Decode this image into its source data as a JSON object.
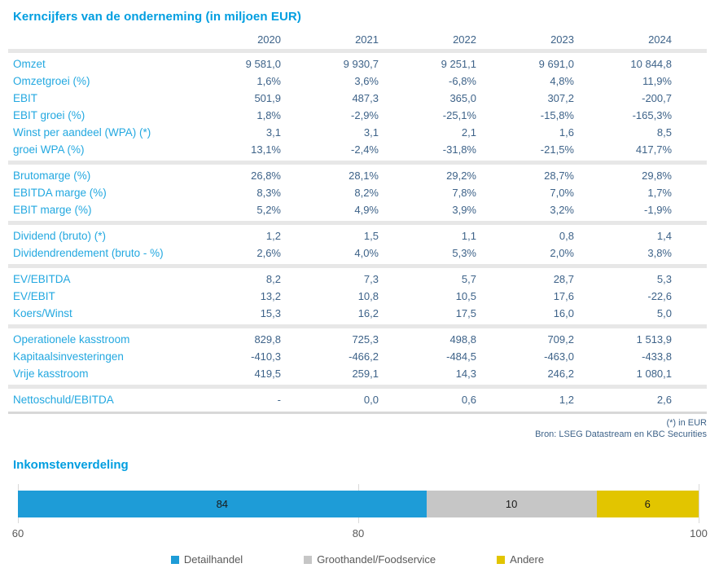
{
  "page": {
    "title": "Kerncijfers van de onderneming (in miljoen EUR)",
    "footnote": "(*) in EUR",
    "source": "Bron: LSEG Datastream en KBC Securities"
  },
  "table": {
    "year_headers": [
      "2020",
      "2021",
      "2022",
      "2023",
      "2024"
    ],
    "sections": [
      {
        "rows": [
          {
            "label": "Omzet",
            "values": [
              "9 581,0",
              "9 930,7",
              "9 251,1",
              "9 691,0",
              "10 844,8"
            ]
          },
          {
            "label": "Omzetgroei (%)",
            "values": [
              "1,6%",
              "3,6%",
              "-6,8%",
              "4,8%",
              "11,9%"
            ]
          },
          {
            "label": "EBIT",
            "values": [
              "501,9",
              "487,3",
              "365,0",
              "307,2",
              "-200,7"
            ]
          },
          {
            "label": "EBIT groei (%)",
            "values": [
              "1,8%",
              "-2,9%",
              "-25,1%",
              "-15,8%",
              "-165,3%"
            ]
          },
          {
            "label": "Winst per aandeel (WPA) (*)",
            "values": [
              "3,1",
              "3,1",
              "2,1",
              "1,6",
              "8,5"
            ]
          },
          {
            "label": "groei WPA (%)",
            "values": [
              "13,1%",
              "-2,4%",
              "-31,8%",
              "-21,5%",
              "417,7%"
            ]
          }
        ]
      },
      {
        "rows": [
          {
            "label": "Brutomarge (%)",
            "values": [
              "26,8%",
              "28,1%",
              "29,2%",
              "28,7%",
              "29,8%"
            ]
          },
          {
            "label": "EBITDA marge (%)",
            "values": [
              "8,3%",
              "8,2%",
              "7,8%",
              "7,0%",
              "1,7%"
            ]
          },
          {
            "label": "EBIT marge (%)",
            "values": [
              "5,2%",
              "4,9%",
              "3,9%",
              "3,2%",
              "-1,9%"
            ]
          }
        ]
      },
      {
        "rows": [
          {
            "label": "Dividend (bruto) (*)",
            "values": [
              "1,2",
              "1,5",
              "1,1",
              "0,8",
              "1,4"
            ]
          },
          {
            "label": "Dividendrendement (bruto - %)",
            "values": [
              "2,6%",
              "4,0%",
              "5,3%",
              "2,0%",
              "3,8%"
            ]
          }
        ]
      },
      {
        "rows": [
          {
            "label": "EV/EBITDA",
            "values": [
              "8,2",
              "7,3",
              "5,7",
              "28,7",
              "5,3"
            ]
          },
          {
            "label": "EV/EBIT",
            "values": [
              "13,2",
              "10,8",
              "10,5",
              "17,6",
              "-22,6"
            ]
          },
          {
            "label": "Koers/Winst",
            "values": [
              "15,3",
              "16,2",
              "17,5",
              "16,0",
              "5,0"
            ]
          }
        ]
      },
      {
        "rows": [
          {
            "label": "Operationele kasstroom",
            "values": [
              "829,8",
              "725,3",
              "498,8",
              "709,2",
              "1 513,9"
            ]
          },
          {
            "label": "Kapitaalsinvesteringen",
            "values": [
              "-410,3",
              "-466,2",
              "-484,5",
              "-463,0",
              "-433,8"
            ]
          },
          {
            "label": "Vrije kasstroom",
            "values": [
              "419,5",
              "259,1",
              "14,3",
              "246,2",
              "1 080,1"
            ]
          }
        ]
      },
      {
        "rows": [
          {
            "label": "Nettoschuld/EBITDA",
            "values": [
              "-",
              "0,0",
              "0,6",
              "1,2",
              "2,6"
            ]
          }
        ]
      }
    ]
  },
  "chart": {
    "title": "Inkomstenverdeling"
  },
  "chart_data": {
    "type": "bar",
    "orientation": "horizontal-stacked",
    "title": "Inkomstenverdeling",
    "series": [
      {
        "name": "Detailhandel",
        "value": 84,
        "color": "#1e9cd7"
      },
      {
        "name": "Groothandel/Foodservice",
        "value": 10,
        "color": "#c6c6c6"
      },
      {
        "name": "Andere",
        "value": 6,
        "color": "#e2c500"
      }
    ],
    "xlim": [
      60,
      100
    ],
    "ticks": [
      60,
      80,
      100
    ],
    "grid": true,
    "legend_position": "bottom"
  },
  "colors": {
    "accent_blue": "#009ee0",
    "label_blue": "#23a8e0",
    "value_navy": "#3e6389",
    "separator_gray": "#e7e7e7",
    "axis_text_gray": "#595959"
  }
}
